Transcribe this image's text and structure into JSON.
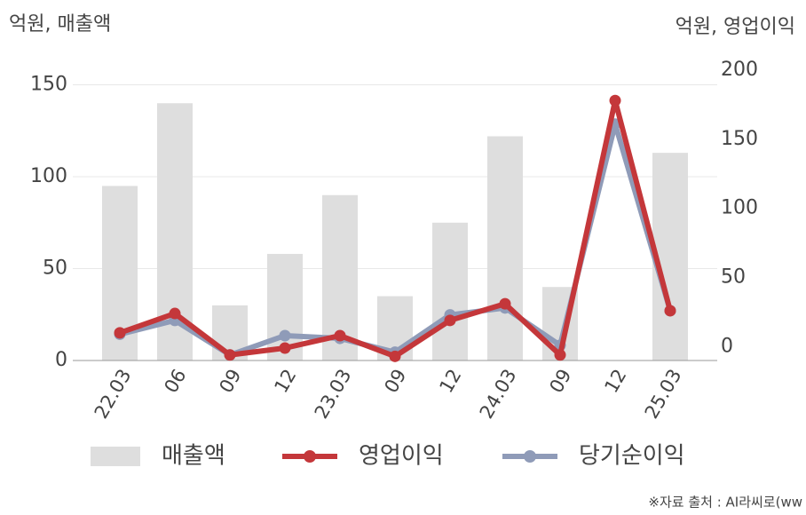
{
  "chart_data": {
    "type": "bar-line",
    "y_unit_label": "억원, 매출액",
    "y2_unit_label": "억원, 영업이익",
    "source": "※자료 출처 : AI라씨로(ww",
    "categories": [
      "22.03",
      "06",
      "09",
      "12",
      "23.03",
      "09",
      "12",
      "24.03",
      "09",
      "12",
      "25.03"
    ],
    "series": [
      {
        "name": "매출액",
        "type": "bar",
        "color": "#dedede",
        "values": [
          95,
          140,
          30,
          58,
          90,
          35,
          75,
          122,
          40,
          null,
          113
        ]
      },
      {
        "name": "영업이익",
        "type": "line",
        "axis": "y2",
        "color": "#c4373a",
        "values": [
          10,
          24,
          -6,
          -1,
          8,
          -7,
          19,
          31,
          -6,
          178,
          26
        ]
      },
      {
        "name": "당기순이익",
        "type": "line",
        "axis": "y2",
        "color": "#8f9bb8",
        "values": [
          9,
          19,
          -6,
          8,
          6,
          -4,
          23,
          28,
          1,
          161,
          26
        ]
      }
    ],
    "ylim": [
      0,
      158
    ],
    "yticks": [
      0,
      50,
      100,
      150
    ],
    "y2lim": [
      -10,
      200
    ],
    "y2ticks": [
      0,
      50,
      100,
      150,
      200
    ],
    "grid": true
  }
}
